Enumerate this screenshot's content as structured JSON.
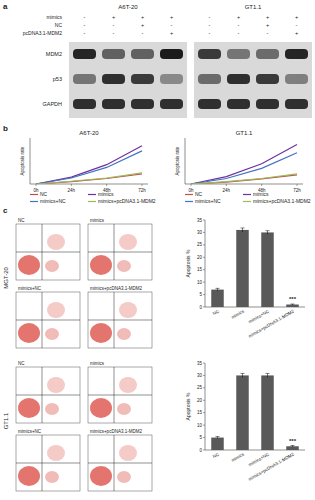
{
  "panel_labels": [
    "a",
    "b",
    "c"
  ],
  "blot": {
    "cell_lines": [
      "A6T-20",
      "GT1.1"
    ],
    "conditions": [
      {
        "name": "mimics",
        "signs": [
          "-",
          "+",
          "+",
          "+"
        ]
      },
      {
        "name": "NC",
        "signs": [
          "-",
          "-",
          "+",
          "-"
        ]
      },
      {
        "name": "pcDNA3.1-MDM2",
        "signs": [
          "-",
          "-",
          "-",
          "+"
        ]
      }
    ],
    "proteins": [
      {
        "name": "MDM2",
        "intensity": [
          [
            0.9,
            0.6,
            0.6,
            0.95
          ],
          [
            0.8,
            0.5,
            0.55,
            0.9
          ]
        ]
      },
      {
        "name": "p53",
        "intensity": [
          [
            0.5,
            0.85,
            0.8,
            0.4
          ],
          [
            0.55,
            0.85,
            0.8,
            0.45
          ]
        ]
      },
      {
        "name": "GAPDH",
        "intensity": [
          [
            0.85,
            0.85,
            0.85,
            0.85
          ],
          [
            0.85,
            0.85,
            0.85,
            0.85
          ]
        ]
      }
    ]
  },
  "chart_data": [
    {
      "type": "line",
      "title": "A6T-20",
      "y_label": "Apoptosis rate",
      "categories": [
        "0h",
        "24h",
        "48h",
        "72h"
      ],
      "series": [
        {
          "name": "NC",
          "color": "#c0504d",
          "values": [
            0,
            0.5,
            1.2,
            2.2
          ]
        },
        {
          "name": "mimics",
          "color": "#7030a0",
          "values": [
            0,
            1.5,
            4.2,
            8.3
          ]
        },
        {
          "name": "mimics+NC",
          "color": "#4472c4",
          "values": [
            0,
            1.3,
            3.6,
            7.2
          ]
        },
        {
          "name": "mimics+pcDNA3.1-MDM2",
          "color": "#9bbb59",
          "values": [
            0,
            0.6,
            1.3,
            2.4
          ]
        }
      ],
      "ylim": [
        0,
        10
      ],
      "tick_labels": "x",
      "legend": "bottom",
      "grid": false
    },
    {
      "type": "line",
      "title": "GT1.1",
      "y_label": "Apoptosis rate",
      "categories": [
        "0h",
        "24h",
        "48h",
        "72h"
      ],
      "series": [
        {
          "name": "NC",
          "color": "#c0504d",
          "values": [
            0,
            0.4,
            1.1,
            2.0
          ]
        },
        {
          "name": "mimics",
          "color": "#7030a0",
          "values": [
            0,
            1.6,
            4.4,
            8.6
          ]
        },
        {
          "name": "mimics+NC",
          "color": "#4472c4",
          "values": [
            0,
            1.2,
            3.4,
            6.8
          ]
        },
        {
          "name": "mimics+pcDNA3.1-MDM2",
          "color": "#9bbb59",
          "values": [
            0,
            0.5,
            1.2,
            2.2
          ]
        }
      ],
      "ylim": [
        0,
        10
      ],
      "tick_labels": "x",
      "legend": "bottom",
      "grid": false
    },
    {
      "type": "bar",
      "y_label": "Apoptosis %",
      "categories": [
        "NC",
        "mimics",
        "mimics+NC",
        "mimics+pcDNA3.1-MDM2"
      ],
      "values": [
        7,
        31,
        30,
        1
      ],
      "errors": [
        0.5,
        0.8,
        0.7,
        0.2
      ],
      "color": "#595959",
      "ylim": [
        0,
        35
      ],
      "yticks": [
        0,
        5,
        10,
        15,
        20,
        25,
        30,
        35
      ],
      "grid": false,
      "annotations": [
        {
          "text": "***",
          "index": 3
        }
      ]
    },
    {
      "type": "bar",
      "y_label": "Apoptosis %",
      "categories": [
        "NC",
        "mimics",
        "mimics+NC",
        "mimics+pcDNA3.1-MDM2"
      ],
      "values": [
        5,
        30,
        30,
        1.5
      ],
      "errors": [
        0.4,
        0.8,
        0.8,
        0.3
      ],
      "color": "#595959",
      "ylim": [
        0,
        35
      ],
      "yticks": [
        0,
        5,
        10,
        15,
        20,
        25,
        30,
        35
      ],
      "grid": false,
      "annotations": [
        {
          "text": "***",
          "index": 3
        }
      ]
    }
  ],
  "flow": {
    "cell_lines": [
      "MGT-20",
      "GT1.1"
    ],
    "plots": [
      "NC",
      "mimics",
      "mimics+NC",
      "mimics+pcDNA3.1-MDM2"
    ]
  }
}
